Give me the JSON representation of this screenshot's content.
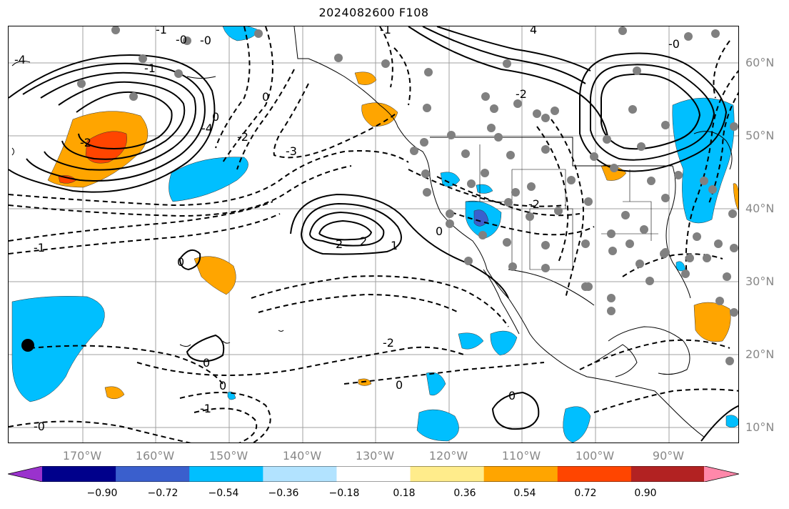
{
  "title": "2024082600 F108",
  "lat_labels": [
    "60°N",
    "50°N",
    "40°N",
    "30°N",
    "20°N",
    "10°N"
  ],
  "lon_labels": [
    "170°W",
    "160°W",
    "150°W",
    "140°W",
    "130°W",
    "120°W",
    "110°W",
    "100°W",
    "90°W"
  ],
  "contour_labels": [
    "-4",
    "-1",
    "-0",
    "-1",
    "4",
    "-1",
    "0",
    "-2",
    "0",
    "-2",
    "-4",
    "-3",
    "2",
    "2",
    "1",
    "-1",
    "-0",
    "-2",
    "0",
    "0",
    "0",
    "-1",
    "0",
    "-0",
    "0",
    "-2",
    "-0",
    "0",
    "-2"
  ],
  "colorbar": {
    "ticks": [
      "−0.90",
      "−0.72",
      "−0.54",
      "−0.36",
      "−0.18",
      "0.18",
      "0.36",
      "0.54",
      "0.72",
      "0.90"
    ],
    "colors": [
      "#9a32cd",
      "#00008b",
      "#3a5fcd",
      "#00bfff",
      "#b2e3ff",
      "#ffffff",
      "#ffec8b",
      "#ffa500",
      "#ff4500",
      "#b22222",
      "#ff88aa"
    ]
  }
}
